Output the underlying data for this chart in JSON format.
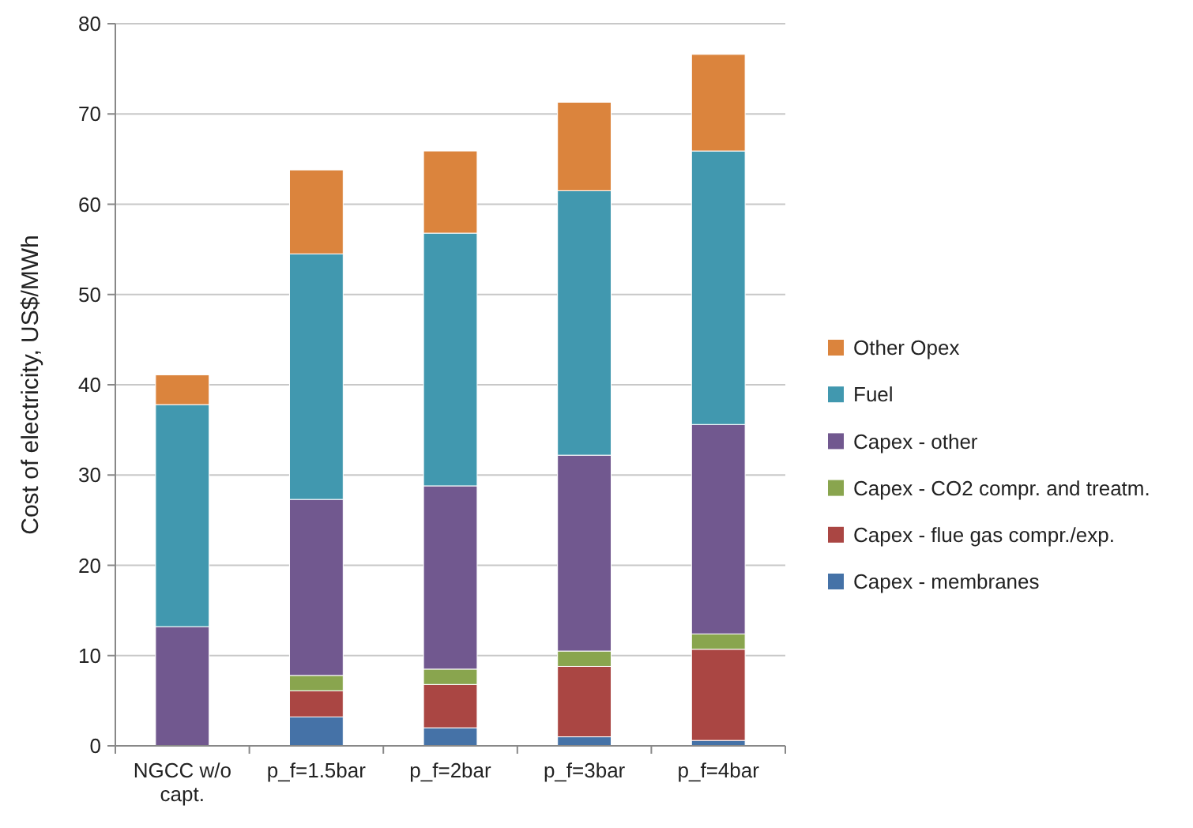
{
  "chart_data": {
    "type": "bar",
    "stacked": true,
    "ylabel": "Cost of electricity, US$/MWh",
    "categories": [
      "NGCC w/o capt.",
      "p_f=1.5bar",
      "p_f=2bar",
      "p_f=3bar",
      "p_f=4bar"
    ],
    "series": [
      {
        "name": "Capex - membranes",
        "color": "#4572a7",
        "values": [
          0,
          3.2,
          2.0,
          1.0,
          0.6
        ]
      },
      {
        "name": "Capex - flue gas compr./exp.",
        "color": "#aa4643",
        "values": [
          0,
          2.9,
          4.8,
          7.8,
          10.1
        ]
      },
      {
        "name": "Capex - CO2 compr. and treatm.",
        "color": "#89a54e",
        "values": [
          0,
          1.7,
          1.7,
          1.7,
          1.7
        ]
      },
      {
        "name": "Capex - other",
        "color": "#71588f",
        "values": [
          13.2,
          19.5,
          20.3,
          21.7,
          23.2
        ]
      },
      {
        "name": "Fuel",
        "color": "#4198af",
        "values": [
          24.6,
          27.2,
          28.0,
          29.3,
          30.3
        ]
      },
      {
        "name": "Other Opex",
        "color": "#db843d",
        "values": [
          3.3,
          9.3,
          9.1,
          9.8,
          10.7
        ]
      }
    ],
    "ylim": [
      0,
      80
    ],
    "yticks": [
      0,
      10,
      20,
      30,
      40,
      50,
      60,
      70,
      80
    ],
    "grid": "y",
    "legend": "right"
  }
}
